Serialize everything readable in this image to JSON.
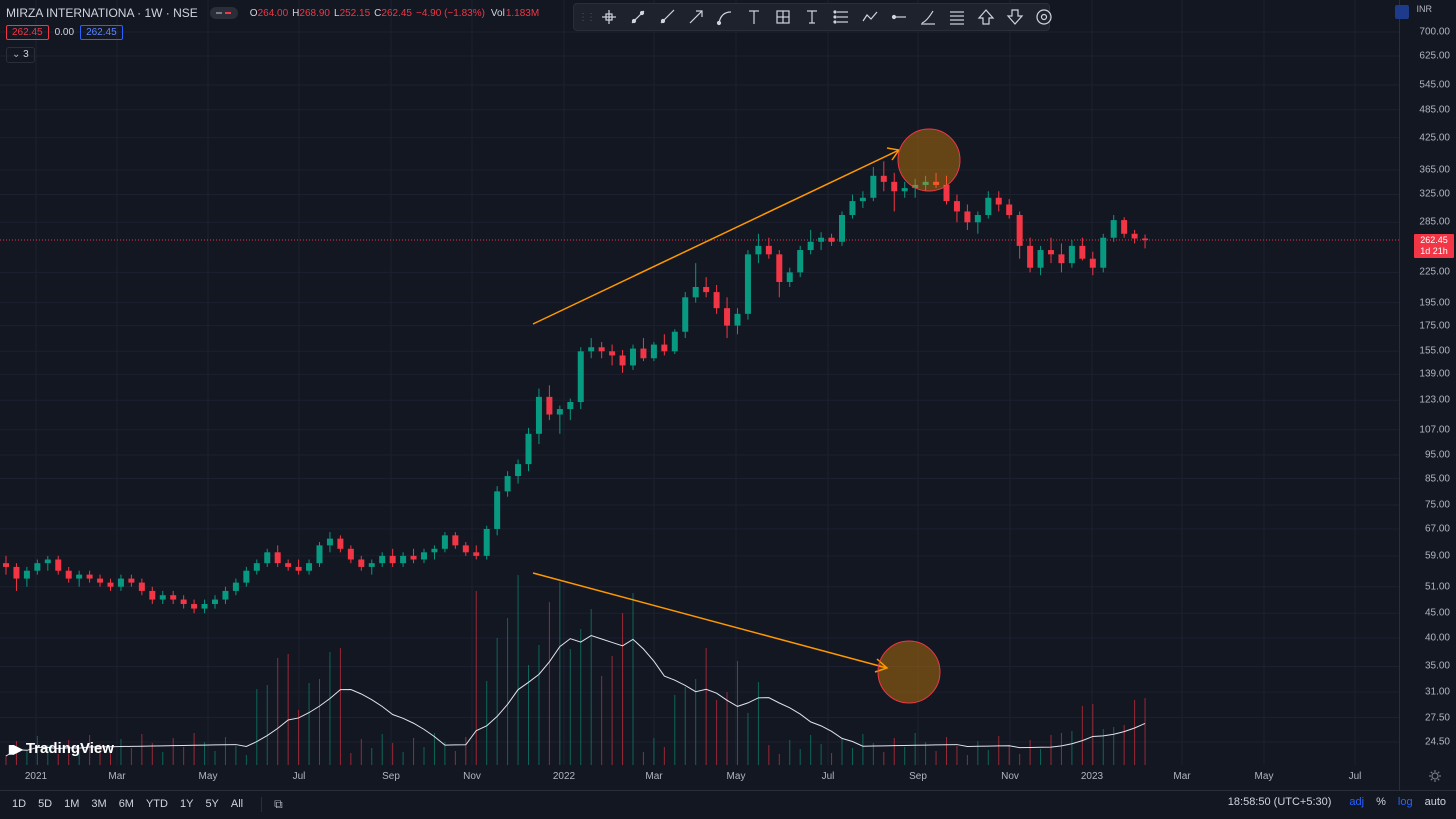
{
  "header": {
    "title": "MIRZA INTERNATIONA · 1W · NSE",
    "ohlc": [
      {
        "k": "O",
        "v": "264.00"
      },
      {
        "k": "H",
        "v": "268.90"
      },
      {
        "k": "L",
        "v": "252.15"
      },
      {
        "k": "C",
        "v": "262.45"
      },
      {
        "k": "",
        "v": "−4.90 (−1.83%)"
      }
    ],
    "vol_label": "Vol",
    "vol_value": "1.183M"
  },
  "badges": {
    "sell": "262.45",
    "spread": "0.00",
    "buy": "262.45"
  },
  "collapse_label": "3",
  "toolbar": {
    "tools": [
      "crosshair-icon",
      "trend-line-icon",
      "ray-line-icon",
      "arrow-line-icon",
      "curve-icon",
      "text-icon",
      "frame-icon",
      "vertical-text-icon",
      "fib-icon",
      "path-icon",
      "horizontal-ray-icon",
      "brush-icon",
      "lines-icon",
      "arrow-up-icon",
      "arrow-down-icon",
      "target-icon"
    ]
  },
  "axis": {
    "currency": "INR",
    "price_labels": [
      "700.00",
      "625.00",
      "545.00",
      "485.00",
      "425.00",
      "365.00",
      "325.00",
      "285.00",
      "225.00",
      "195.00",
      "175.00",
      "155.00",
      "139.00",
      "123.00",
      "107.00",
      "95.00",
      "85.00",
      "75.00",
      "67.00",
      "59.00",
      "51.00",
      "45.00",
      "40.00",
      "35.00",
      "31.00",
      "27.50",
      "24.50"
    ],
    "last_price": "262.45",
    "countdown": "1d 21h"
  },
  "time_labels": [
    "2021",
    "Mar",
    "May",
    "Jul",
    "Sep",
    "Nov",
    "2022",
    "Mar",
    "May",
    "Jul",
    "Sep",
    "Nov",
    "2023",
    "Mar",
    "May",
    "Jul"
  ],
  "bottom": {
    "ranges": [
      "1D",
      "5D",
      "1M",
      "3M",
      "6M",
      "YTD",
      "1Y",
      "5Y",
      "All"
    ],
    "clock": "18:58:50 (UTC+5:30)",
    "options": [
      "adj",
      "%",
      "log",
      "auto"
    ]
  },
  "logo_text": "TradingView",
  "colors": {
    "bg": "#131722",
    "up": "#089981",
    "down": "#f23645",
    "annotation": "#ff9800",
    "grid": "#1c2030"
  },
  "chart_data": {
    "type": "candlestick",
    "symbol": "MIRZA INTERNATIONA",
    "interval": "1W",
    "exchange": "NSE",
    "scale": "log",
    "candles": [
      [
        57,
        59,
        54,
        56
      ],
      [
        56,
        57,
        50,
        53
      ],
      [
        53,
        56,
        51,
        55
      ],
      [
        55,
        58,
        54,
        57
      ],
      [
        57,
        59,
        55,
        58
      ],
      [
        58,
        59,
        54,
        55
      ],
      [
        55,
        56,
        52,
        53
      ],
      [
        53,
        55,
        51,
        54
      ],
      [
        54,
        55,
        52,
        53
      ],
      [
        53,
        54,
        51,
        52
      ],
      [
        52,
        53,
        50,
        51
      ],
      [
        51,
        54,
        50,
        53
      ],
      [
        53,
        54,
        51,
        52
      ],
      [
        52,
        53,
        49,
        50
      ],
      [
        50,
        51,
        47,
        48
      ],
      [
        48,
        50,
        47,
        49
      ],
      [
        49,
        50,
        47,
        48
      ],
      [
        48,
        49,
        46,
        47
      ],
      [
        47,
        48,
        45,
        46
      ],
      [
        46,
        48,
        45,
        47
      ],
      [
        47,
        49,
        46,
        48
      ],
      [
        48,
        51,
        47,
        50
      ],
      [
        50,
        53,
        49,
        52
      ],
      [
        52,
        56,
        51,
        55
      ],
      [
        55,
        58,
        54,
        57
      ],
      [
        57,
        61,
        56,
        60
      ],
      [
        60,
        62,
        56,
        57
      ],
      [
        57,
        58,
        55,
        56
      ],
      [
        56,
        58,
        54,
        55
      ],
      [
        55,
        58,
        54,
        57
      ],
      [
        57,
        63,
        56,
        62
      ],
      [
        62,
        66,
        60,
        64
      ],
      [
        64,
        65,
        60,
        61
      ],
      [
        61,
        62,
        57,
        58
      ],
      [
        58,
        59,
        55,
        56
      ],
      [
        56,
        58,
        54,
        57
      ],
      [
        57,
        60,
        56,
        59
      ],
      [
        59,
        61,
        56,
        57
      ],
      [
        57,
        60,
        56,
        59
      ],
      [
        59,
        61,
        57,
        58
      ],
      [
        58,
        61,
        57,
        60
      ],
      [
        60,
        62,
        58,
        61
      ],
      [
        61,
        66,
        60,
        65
      ],
      [
        65,
        66,
        61,
        62
      ],
      [
        62,
        63,
        59,
        60
      ],
      [
        60,
        62,
        58,
        59
      ],
      [
        59,
        68,
        58,
        67
      ],
      [
        67,
        82,
        65,
        80
      ],
      [
        80,
        88,
        78,
        86
      ],
      [
        86,
        93,
        83,
        91
      ],
      [
        91,
        108,
        88,
        105
      ],
      [
        105,
        130,
        100,
        125
      ],
      [
        125,
        132,
        112,
        115
      ],
      [
        115,
        120,
        105,
        118
      ],
      [
        118,
        124,
        112,
        122
      ],
      [
        122,
        158,
        118,
        155
      ],
      [
        155,
        165,
        150,
        158
      ],
      [
        158,
        162,
        150,
        155
      ],
      [
        155,
        160,
        145,
        152
      ],
      [
        152,
        156,
        140,
        145
      ],
      [
        145,
        160,
        142,
        157
      ],
      [
        157,
        165,
        148,
        150
      ],
      [
        150,
        162,
        148,
        160
      ],
      [
        160,
        168,
        152,
        155
      ],
      [
        155,
        172,
        153,
        170
      ],
      [
        170,
        205,
        165,
        200
      ],
      [
        200,
        235,
        195,
        210
      ],
      [
        210,
        220,
        200,
        205
      ],
      [
        205,
        212,
        185,
        190
      ],
      [
        190,
        200,
        165,
        175
      ],
      [
        175,
        190,
        168,
        185
      ],
      [
        185,
        250,
        180,
        245
      ],
      [
        245,
        270,
        235,
        255
      ],
      [
        255,
        265,
        240,
        245
      ],
      [
        245,
        250,
        200,
        215
      ],
      [
        215,
        230,
        210,
        225
      ],
      [
        225,
        255,
        220,
        250
      ],
      [
        250,
        275,
        245,
        260
      ],
      [
        260,
        272,
        250,
        265
      ],
      [
        265,
        270,
        255,
        260
      ],
      [
        260,
        300,
        255,
        295
      ],
      [
        295,
        325,
        290,
        315
      ],
      [
        315,
        330,
        305,
        320
      ],
      [
        320,
        370,
        315,
        355
      ],
      [
        355,
        380,
        330,
        345
      ],
      [
        345,
        360,
        300,
        330
      ],
      [
        330,
        345,
        320,
        335
      ],
      [
        335,
        350,
        320,
        340
      ],
      [
        340,
        355,
        330,
        345
      ],
      [
        345,
        360,
        335,
        340
      ],
      [
        340,
        355,
        310,
        315
      ],
      [
        315,
        325,
        285,
        300
      ],
      [
        300,
        310,
        275,
        285
      ],
      [
        285,
        300,
        270,
        295
      ],
      [
        295,
        330,
        290,
        320
      ],
      [
        320,
        330,
        300,
        310
      ],
      [
        310,
        318,
        290,
        295
      ],
      [
        295,
        300,
        240,
        255
      ],
      [
        255,
        265,
        225,
        230
      ],
      [
        230,
        255,
        222,
        250
      ],
      [
        250,
        265,
        235,
        245
      ],
      [
        245,
        258,
        225,
        235
      ],
      [
        235,
        262,
        230,
        255
      ],
      [
        255,
        265,
        238,
        240
      ],
      [
        240,
        248,
        222,
        230
      ],
      [
        230,
        270,
        225,
        265
      ],
      [
        265,
        295,
        260,
        288
      ],
      [
        288,
        292,
        265,
        270
      ],
      [
        270,
        275,
        258,
        264
      ],
      [
        264,
        269,
        252,
        262
      ]
    ],
    "volume_ma_note": "volume histogram with moving-average line",
    "annotations": [
      {
        "type": "arrow",
        "from": "late Nov 2021 price area",
        "to": "Sep 2022 high"
      },
      {
        "type": "circle",
        "at": "Sep 2022 high"
      },
      {
        "type": "arrow",
        "from": "late Nov 2021 volume peak",
        "to": "Sep 2022 low volume"
      },
      {
        "type": "circle",
        "at": "Sep 2022 volume"
      }
    ]
  }
}
